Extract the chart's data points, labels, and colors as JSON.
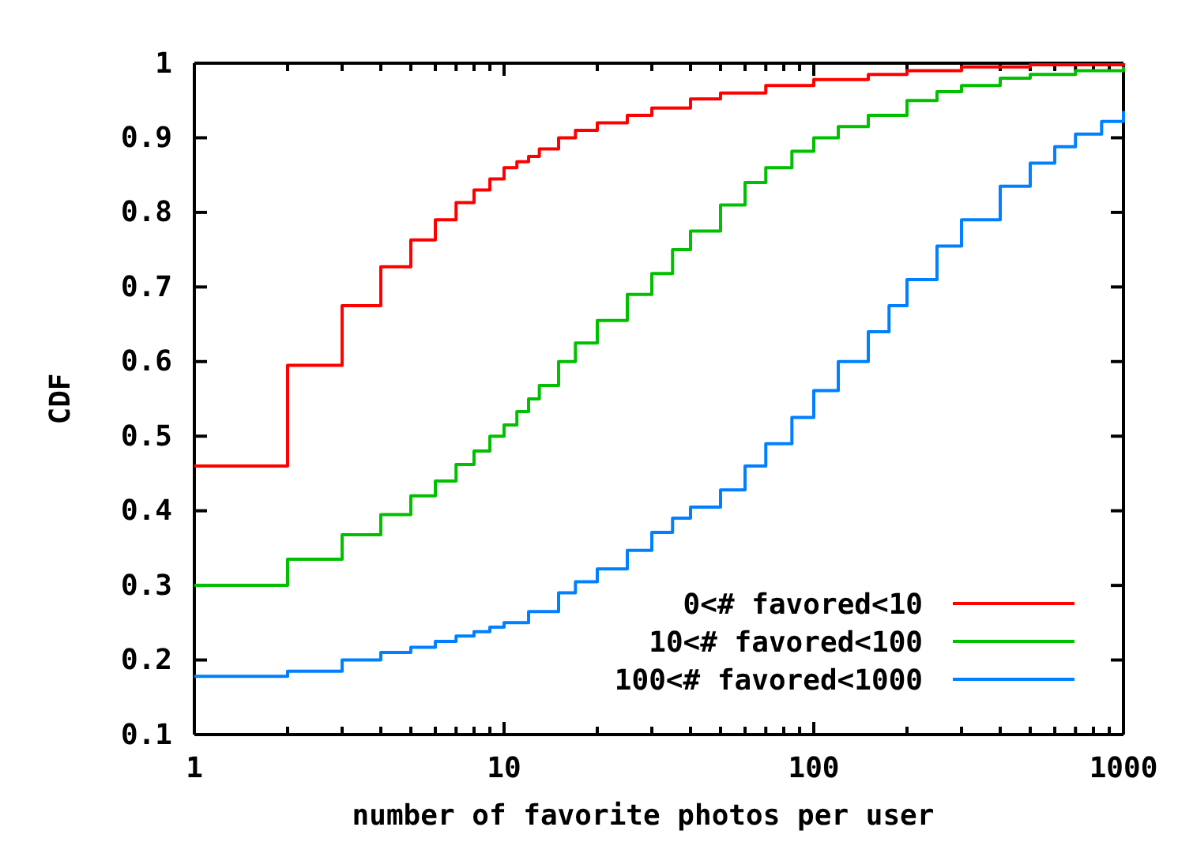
{
  "chart_data": {
    "type": "step",
    "xlabel": "number of favorite photos per user",
    "ylabel": "CDF",
    "log": "x",
    "grid": false,
    "legend": "bottom right",
    "line_style": "solid",
    "marker": "none",
    "xlim": [
      1,
      1000
    ],
    "xticks": [
      1,
      {
        "value": 2,
        "label": null
      },
      {
        "value": 3,
        "label": null
      },
      {
        "value": 4,
        "label": null
      },
      {
        "value": 5,
        "label": null
      },
      {
        "value": 6,
        "label": null
      },
      {
        "value": 7,
        "label": null
      },
      {
        "value": 8,
        "label": null
      },
      {
        "value": 9,
        "label": null
      },
      10,
      {
        "value": 20,
        "label": null
      },
      {
        "value": 30,
        "label": null
      },
      {
        "value": 40,
        "label": null
      },
      {
        "value": 50,
        "label": null
      },
      {
        "value": 60,
        "label": null
      },
      {
        "value": 70,
        "label": null
      },
      {
        "value": 80,
        "label": null
      },
      {
        "value": 90,
        "label": null
      },
      100,
      {
        "value": 200,
        "label": null
      },
      {
        "value": 300,
        "label": null
      },
      {
        "value": 400,
        "label": null
      },
      {
        "value": 500,
        "label": null
      },
      {
        "value": 600,
        "label": null
      },
      {
        "value": 700,
        "label": null
      },
      {
        "value": 800,
        "label": null
      },
      {
        "value": 900,
        "label": null
      },
      1000
    ],
    "ylim": [
      0.1,
      1
    ],
    "yticks": [
      0.1,
      0.2,
      0.3,
      0.4,
      0.5,
      0.6,
      0.7,
      0.8,
      0.9,
      1
    ],
    "series": [
      {
        "name": "0<# favored<10",
        "color": "#ff0000",
        "x": [
          1,
          2,
          3,
          4,
          5,
          6,
          7,
          8,
          9,
          10,
          11,
          12,
          13,
          15,
          17,
          20,
          25,
          30,
          40,
          50,
          70,
          100,
          150,
          200,
          300,
          500,
          1000
        ],
        "values": [
          0.46,
          0.595,
          0.675,
          0.727,
          0.763,
          0.79,
          0.813,
          0.83,
          0.845,
          0.86,
          0.868,
          0.875,
          0.885,
          0.9,
          0.91,
          0.92,
          0.93,
          0.94,
          0.952,
          0.96,
          0.97,
          0.978,
          0.985,
          0.99,
          0.995,
          0.998,
          1
        ]
      },
      {
        "name": "10<# favored<100",
        "color": "#00c000",
        "x": [
          1,
          2,
          3,
          4,
          5,
          6,
          7,
          8,
          9,
          10,
          11,
          12,
          13,
          15,
          17,
          20,
          25,
          30,
          35,
          40,
          50,
          60,
          70,
          85,
          100,
          120,
          150,
          200,
          250,
          300,
          400,
          500,
          700,
          1000
        ],
        "values": [
          0.3,
          0.335,
          0.368,
          0.395,
          0.42,
          0.44,
          0.462,
          0.48,
          0.5,
          0.515,
          0.533,
          0.55,
          0.568,
          0.6,
          0.625,
          0.655,
          0.69,
          0.718,
          0.75,
          0.775,
          0.81,
          0.84,
          0.86,
          0.882,
          0.9,
          0.915,
          0.93,
          0.95,
          0.962,
          0.97,
          0.98,
          0.985,
          0.99,
          0.995
        ]
      },
      {
        "name": "100<# favored<1000",
        "color": "#0080ff",
        "x": [
          1,
          2,
          3,
          4,
          5,
          6,
          7,
          8,
          9,
          10,
          12,
          15,
          17,
          20,
          25,
          30,
          35,
          40,
          50,
          60,
          70,
          85,
          100,
          120,
          150,
          175,
          200,
          250,
          300,
          400,
          500,
          600,
          700,
          850,
          1000
        ],
        "values": [
          0.178,
          0.185,
          0.2,
          0.21,
          0.217,
          0.225,
          0.232,
          0.238,
          0.244,
          0.25,
          0.265,
          0.29,
          0.305,
          0.322,
          0.347,
          0.371,
          0.39,
          0.405,
          0.428,
          0.46,
          0.49,
          0.525,
          0.561,
          0.6,
          0.64,
          0.675,
          0.71,
          0.755,
          0.79,
          0.835,
          0.866,
          0.888,
          0.905,
          0.922,
          0.936
        ]
      }
    ]
  }
}
